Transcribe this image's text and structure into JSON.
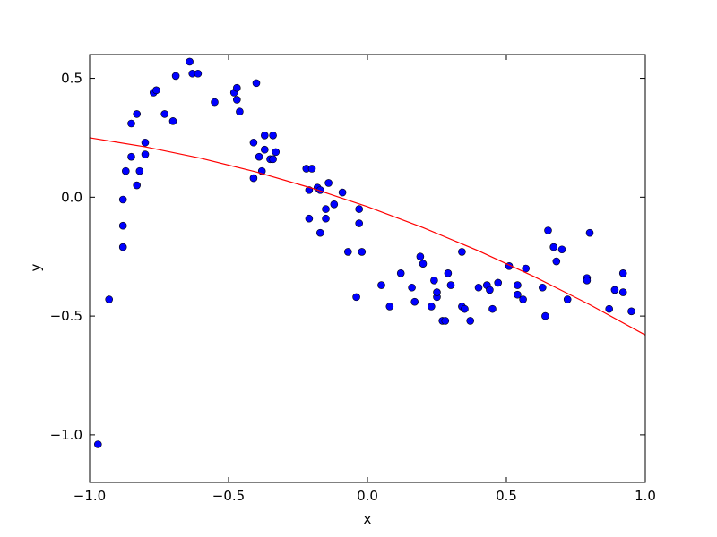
{
  "chart_data": {
    "type": "scatter",
    "xlabel": "x",
    "ylabel": "y",
    "xlim": [
      -1.0,
      1.0
    ],
    "ylim": [
      -1.2,
      0.6
    ],
    "xticks": [
      {
        "value": -1.0,
        "label": "−1.0"
      },
      {
        "value": -0.5,
        "label": "−0.5"
      },
      {
        "value": 0.0,
        "label": "0.0"
      },
      {
        "value": 0.5,
        "label": "0.5"
      },
      {
        "value": 1.0,
        "label": "1.0"
      }
    ],
    "yticks": [
      {
        "value": -1.0,
        "label": "−1.0"
      },
      {
        "value": -0.5,
        "label": "−0.5"
      },
      {
        "value": 0.0,
        "label": "0.0"
      },
      {
        "value": 0.5,
        "label": "0.5"
      }
    ],
    "series": [
      {
        "type": "scatter",
        "color": "#0000ff",
        "x": [
          -0.97,
          -0.93,
          -0.88,
          -0.88,
          -0.88,
          -0.87,
          -0.85,
          -0.85,
          -0.83,
          -0.83,
          -0.82,
          -0.8,
          -0.8,
          -0.77,
          -0.76,
          -0.73,
          -0.7,
          -0.69,
          -0.64,
          -0.63,
          -0.61,
          -0.55,
          -0.48,
          -0.47,
          -0.47,
          -0.46,
          -0.4,
          -0.41,
          -0.41,
          -0.39,
          -0.38,
          -0.37,
          -0.37,
          -0.35,
          -0.34,
          -0.34,
          -0.33,
          -0.22,
          -0.2,
          -0.21,
          -0.21,
          -0.18,
          -0.17,
          -0.14,
          -0.15,
          -0.15,
          -0.17,
          -0.12,
          -0.09,
          -0.07,
          -0.03,
          -0.03,
          -0.02,
          -0.04,
          0.05,
          0.08,
          0.12,
          0.16,
          0.17,
          0.19,
          0.2,
          0.23,
          0.24,
          0.25,
          0.25,
          0.27,
          0.28,
          0.29,
          0.3,
          0.34,
          0.34,
          0.35,
          0.37,
          0.4,
          0.43,
          0.44,
          0.45,
          0.47,
          0.51,
          0.54,
          0.54,
          0.56,
          0.57,
          0.63,
          0.64,
          0.65,
          0.67,
          0.68,
          0.7,
          0.72,
          0.79,
          0.79,
          0.8,
          0.87,
          0.89,
          0.92,
          0.92,
          0.95
        ],
        "values": [
          -1.04,
          -0.43,
          -0.12,
          -0.01,
          -0.21,
          0.11,
          0.17,
          0.31,
          0.35,
          0.05,
          0.11,
          0.23,
          0.18,
          0.44,
          0.45,
          0.35,
          0.32,
          0.51,
          0.57,
          0.52,
          0.52,
          0.4,
          0.44,
          0.41,
          0.46,
          0.36,
          0.48,
          0.23,
          0.08,
          0.17,
          0.11,
          0.2,
          0.26,
          0.16,
          0.16,
          0.26,
          0.19,
          0.12,
          0.12,
          0.03,
          -0.09,
          0.04,
          0.03,
          0.06,
          -0.05,
          -0.09,
          -0.15,
          -0.03,
          0.02,
          -0.23,
          -0.05,
          -0.11,
          -0.23,
          -0.42,
          -0.37,
          -0.46,
          -0.32,
          -0.38,
          -0.44,
          -0.25,
          -0.28,
          -0.46,
          -0.35,
          -0.42,
          -0.4,
          -0.52,
          -0.52,
          -0.32,
          -0.37,
          -0.46,
          -0.23,
          -0.47,
          -0.52,
          -0.38,
          -0.37,
          -0.39,
          -0.47,
          -0.36,
          -0.29,
          -0.37,
          -0.41,
          -0.43,
          -0.3,
          -0.38,
          -0.5,
          -0.14,
          -0.21,
          -0.27,
          -0.22,
          -0.43,
          -0.34,
          -0.35,
          -0.15,
          -0.47,
          -0.39,
          -0.32,
          -0.4,
          -0.48
        ]
      },
      {
        "type": "line",
        "color": "#ff0000",
        "x": [
          -1.0,
          -0.8,
          -0.6,
          -0.4,
          -0.2,
          0.0,
          0.2,
          0.4,
          0.6,
          0.8,
          1.0
        ],
        "values": [
          0.25,
          0.212,
          0.164,
          0.106,
          0.038,
          -0.04,
          -0.128,
          -0.226,
          -0.334,
          -0.452,
          -0.58
        ]
      }
    ]
  }
}
